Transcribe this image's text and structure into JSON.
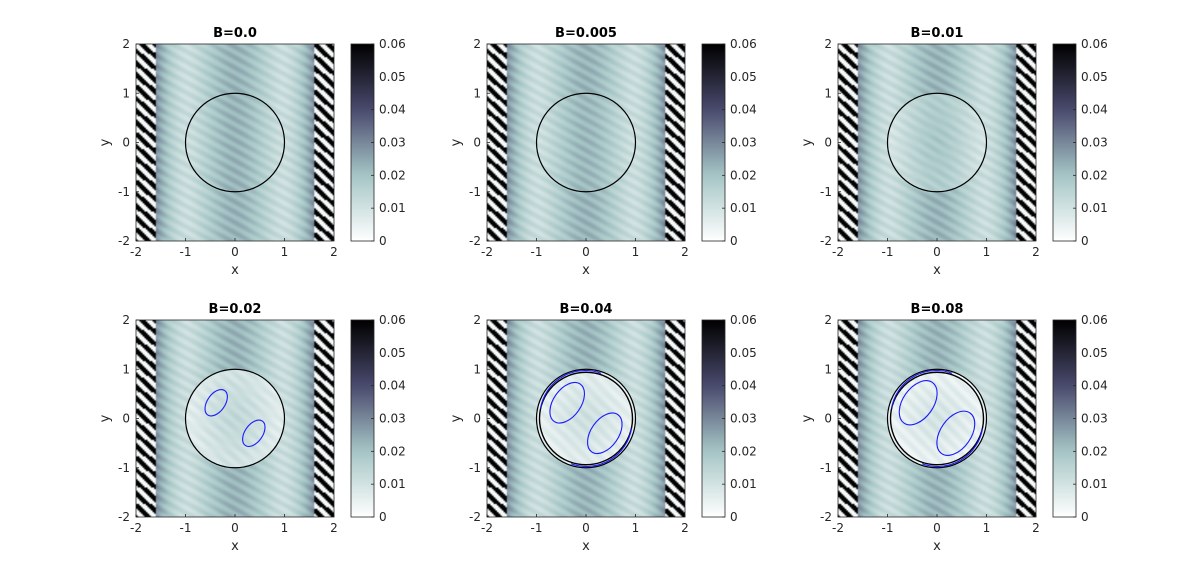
{
  "colors": {
    "colormap": [
      "#ffffff",
      "#a6c6c6",
      "#4a4a6e",
      "#000000"
    ],
    "circle": "#000000",
    "contour": "#1a1aff",
    "axis": "#262626"
  },
  "chart_data": [
    {
      "type": "heatmap",
      "title": "B=0.0",
      "xlabel": "x",
      "ylabel": "y",
      "xlim": [
        -2,
        2
      ],
      "ylim": [
        -2,
        2
      ],
      "xticks": [
        "-2",
        "-1",
        "0",
        "1",
        "2"
      ],
      "yticks": [
        "-2",
        "-1",
        "0",
        "1",
        "2"
      ],
      "clim": [
        0,
        0.06
      ],
      "cbar_ticks": [
        "0",
        "0.01",
        "0.02",
        "0.03",
        "0.04",
        "0.05",
        "0.06"
      ],
      "circle_radius": 1.0,
      "hole_strength": 0.0,
      "contour_rx": 0,
      "contour_ry": 0
    },
    {
      "type": "heatmap",
      "title": "B=0.005",
      "xlabel": "x",
      "ylabel": "y",
      "xlim": [
        -2,
        2
      ],
      "ylim": [
        -2,
        2
      ],
      "xticks": [
        "-2",
        "-1",
        "0",
        "1",
        "2"
      ],
      "yticks": [
        "-2",
        "-1",
        "0",
        "1",
        "2"
      ],
      "clim": [
        0,
        0.06
      ],
      "cbar_ticks": [
        "0",
        "0.01",
        "0.02",
        "0.03",
        "0.04",
        "0.05",
        "0.06"
      ],
      "circle_radius": 1.0,
      "hole_strength": 0.05,
      "contour_rx": 0,
      "contour_ry": 0
    },
    {
      "type": "heatmap",
      "title": "B=0.01",
      "xlabel": "x",
      "ylabel": "y",
      "xlim": [
        -2,
        2
      ],
      "ylim": [
        -2,
        2
      ],
      "xticks": [
        "-2",
        "-1",
        "0",
        "1",
        "2"
      ],
      "yticks": [
        "-2",
        "-1",
        "0",
        "1",
        "2"
      ],
      "clim": [
        0,
        0.06
      ],
      "cbar_ticks": [
        "0",
        "0.01",
        "0.02",
        "0.03",
        "0.04",
        "0.05",
        "0.06"
      ],
      "circle_radius": 1.0,
      "hole_strength": 0.3,
      "contour_rx": 0,
      "contour_ry": 0
    },
    {
      "type": "heatmap",
      "title": "B=0.02",
      "xlabel": "x",
      "ylabel": "y",
      "xlim": [
        -2,
        2
      ],
      "ylim": [
        -2,
        2
      ],
      "xticks": [
        "-2",
        "-1",
        "0",
        "1",
        "2"
      ],
      "yticks": [
        "-2",
        "-1",
        "0",
        "1",
        "2"
      ],
      "clim": [
        0,
        0.06
      ],
      "cbar_ticks": [
        "0",
        "0.01",
        "0.02",
        "0.03",
        "0.04",
        "0.05",
        "0.06"
      ],
      "circle_radius": 1.0,
      "hole_strength": 0.7,
      "contour_rx": 0.3,
      "contour_ry": 0.18
    },
    {
      "type": "heatmap",
      "title": "B=0.04",
      "xlabel": "x",
      "ylabel": "y",
      "xlim": [
        -2,
        2
      ],
      "ylim": [
        -2,
        2
      ],
      "xticks": [
        "-2",
        "-1",
        "0",
        "1",
        "2"
      ],
      "yticks": [
        "-2",
        "-1",
        "0",
        "1",
        "2"
      ],
      "clim": [
        0,
        0.06
      ],
      "cbar_ticks": [
        "0",
        "0.01",
        "0.02",
        "0.03",
        "0.04",
        "0.05",
        "0.06"
      ],
      "circle_radius": 1.0,
      "hole_strength": 0.9,
      "contour_rx": 0.46,
      "contour_ry": 0.28
    },
    {
      "type": "heatmap",
      "title": "B=0.08",
      "xlabel": "x",
      "ylabel": "y",
      "xlim": [
        -2,
        2
      ],
      "ylim": [
        -2,
        2
      ],
      "xticks": [
        "-2",
        "-1",
        "0",
        "1",
        "2"
      ],
      "yticks": [
        "-2",
        "-1",
        "0",
        "1",
        "2"
      ],
      "clim": [
        0,
        0.06
      ],
      "cbar_ticks": [
        "0",
        "0.01",
        "0.02",
        "0.03",
        "0.04",
        "0.05",
        "0.06"
      ],
      "circle_radius": 1.0,
      "hole_strength": 1.0,
      "contour_rx": 0.5,
      "contour_ry": 0.31
    }
  ]
}
